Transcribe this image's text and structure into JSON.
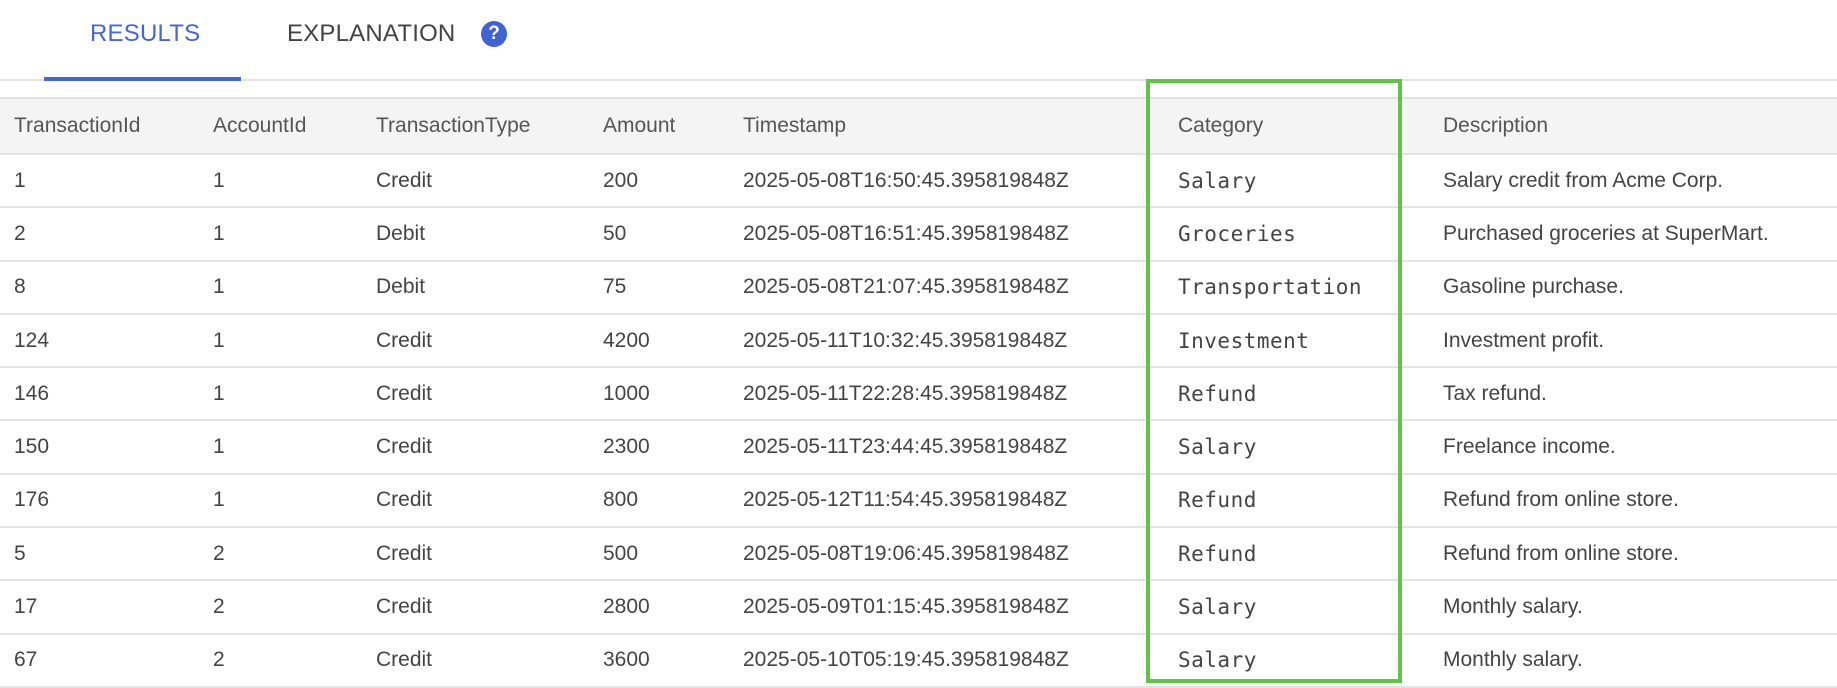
{
  "tabs": {
    "results": "RESULTS",
    "explanation": "EXPLANATION",
    "help_icon": "?"
  },
  "colors": {
    "accent": "#4466d6",
    "highlight": "#62c447"
  },
  "table": {
    "headers": [
      "TransactionId",
      "AccountId",
      "TransactionType",
      "Amount",
      "Timestamp",
      "Category",
      "Description"
    ],
    "rows": [
      [
        "1",
        "1",
        "Credit",
        "200",
        "2025-05-08T16:50:45.395819848Z",
        "Salary",
        "Salary credit from Acme Corp."
      ],
      [
        "2",
        "1",
        "Debit",
        "50",
        "2025-05-08T16:51:45.395819848Z",
        "Groceries",
        "Purchased groceries at SuperMart."
      ],
      [
        "8",
        "1",
        "Debit",
        "75",
        "2025-05-08T21:07:45.395819848Z",
        "Transportation",
        "Gasoline purchase."
      ],
      [
        "124",
        "1",
        "Credit",
        "4200",
        "2025-05-11T10:32:45.395819848Z",
        "Investment",
        "Investment profit."
      ],
      [
        "146",
        "1",
        "Credit",
        "1000",
        "2025-05-11T22:28:45.395819848Z",
        "Refund",
        "Tax refund."
      ],
      [
        "150",
        "1",
        "Credit",
        "2300",
        "2025-05-11T23:44:45.395819848Z",
        "Salary",
        "Freelance income."
      ],
      [
        "176",
        "1",
        "Credit",
        "800",
        "2025-05-12T11:54:45.395819848Z",
        "Refund",
        "Refund from online store."
      ],
      [
        "5",
        "2",
        "Credit",
        "500",
        "2025-05-08T19:06:45.395819848Z",
        "Refund",
        "Refund from online store."
      ],
      [
        "17",
        "2",
        "Credit",
        "2800",
        "2025-05-09T01:15:45.395819848Z",
        "Salary",
        "Monthly salary."
      ],
      [
        "67",
        "2",
        "Credit",
        "3600",
        "2025-05-10T05:19:45.395819848Z",
        "Salary",
        "Monthly salary."
      ]
    ]
  }
}
